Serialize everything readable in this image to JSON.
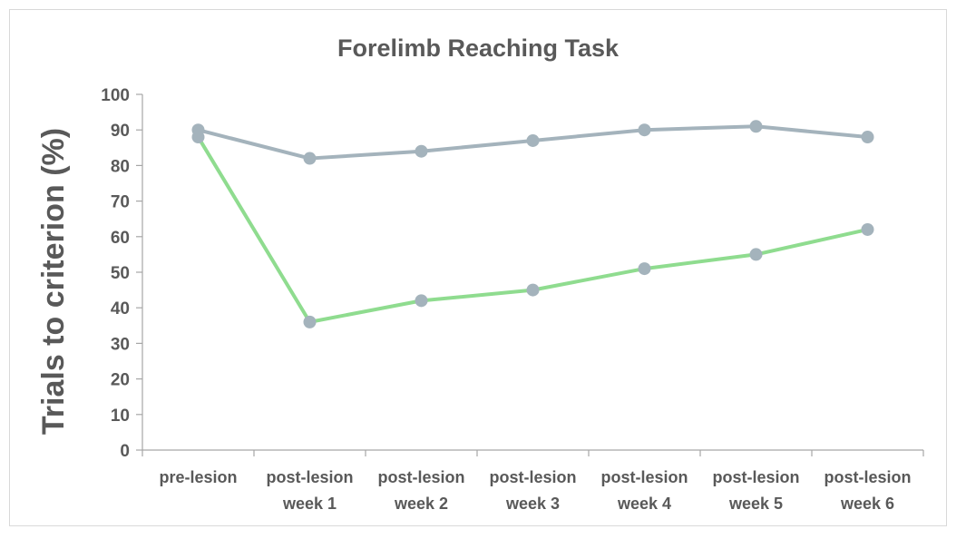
{
  "chart_data": {
    "type": "line",
    "title": "Forelimb Reaching Task",
    "ylabel": "Trials to criterion (%)",
    "xlabel": "",
    "ylim": [
      0,
      100
    ],
    "yticks": [
      0,
      10,
      20,
      30,
      40,
      50,
      60,
      70,
      80,
      90,
      100
    ],
    "categories": [
      [
        "pre-lesion"
      ],
      [
        "post-lesion",
        "week 1"
      ],
      [
        "post-lesion",
        "week 2"
      ],
      [
        "post-lesion",
        "week 3"
      ],
      [
        "post-lesion",
        "week 4"
      ],
      [
        "post-lesion",
        "week 5"
      ],
      [
        "post-lesion",
        "week 6"
      ]
    ],
    "grid": false,
    "legend": "none",
    "series": [
      {
        "values": [
          88,
          36,
          42,
          45,
          51,
          55,
          62
        ],
        "line_color": "#8fdc8f",
        "marker_color": "#a4b3bc"
      },
      {
        "values": [
          90,
          82,
          84,
          87,
          90,
          91,
          88
        ],
        "line_color": "#a4b3bc",
        "marker_color": "#a4b3bc"
      }
    ]
  }
}
